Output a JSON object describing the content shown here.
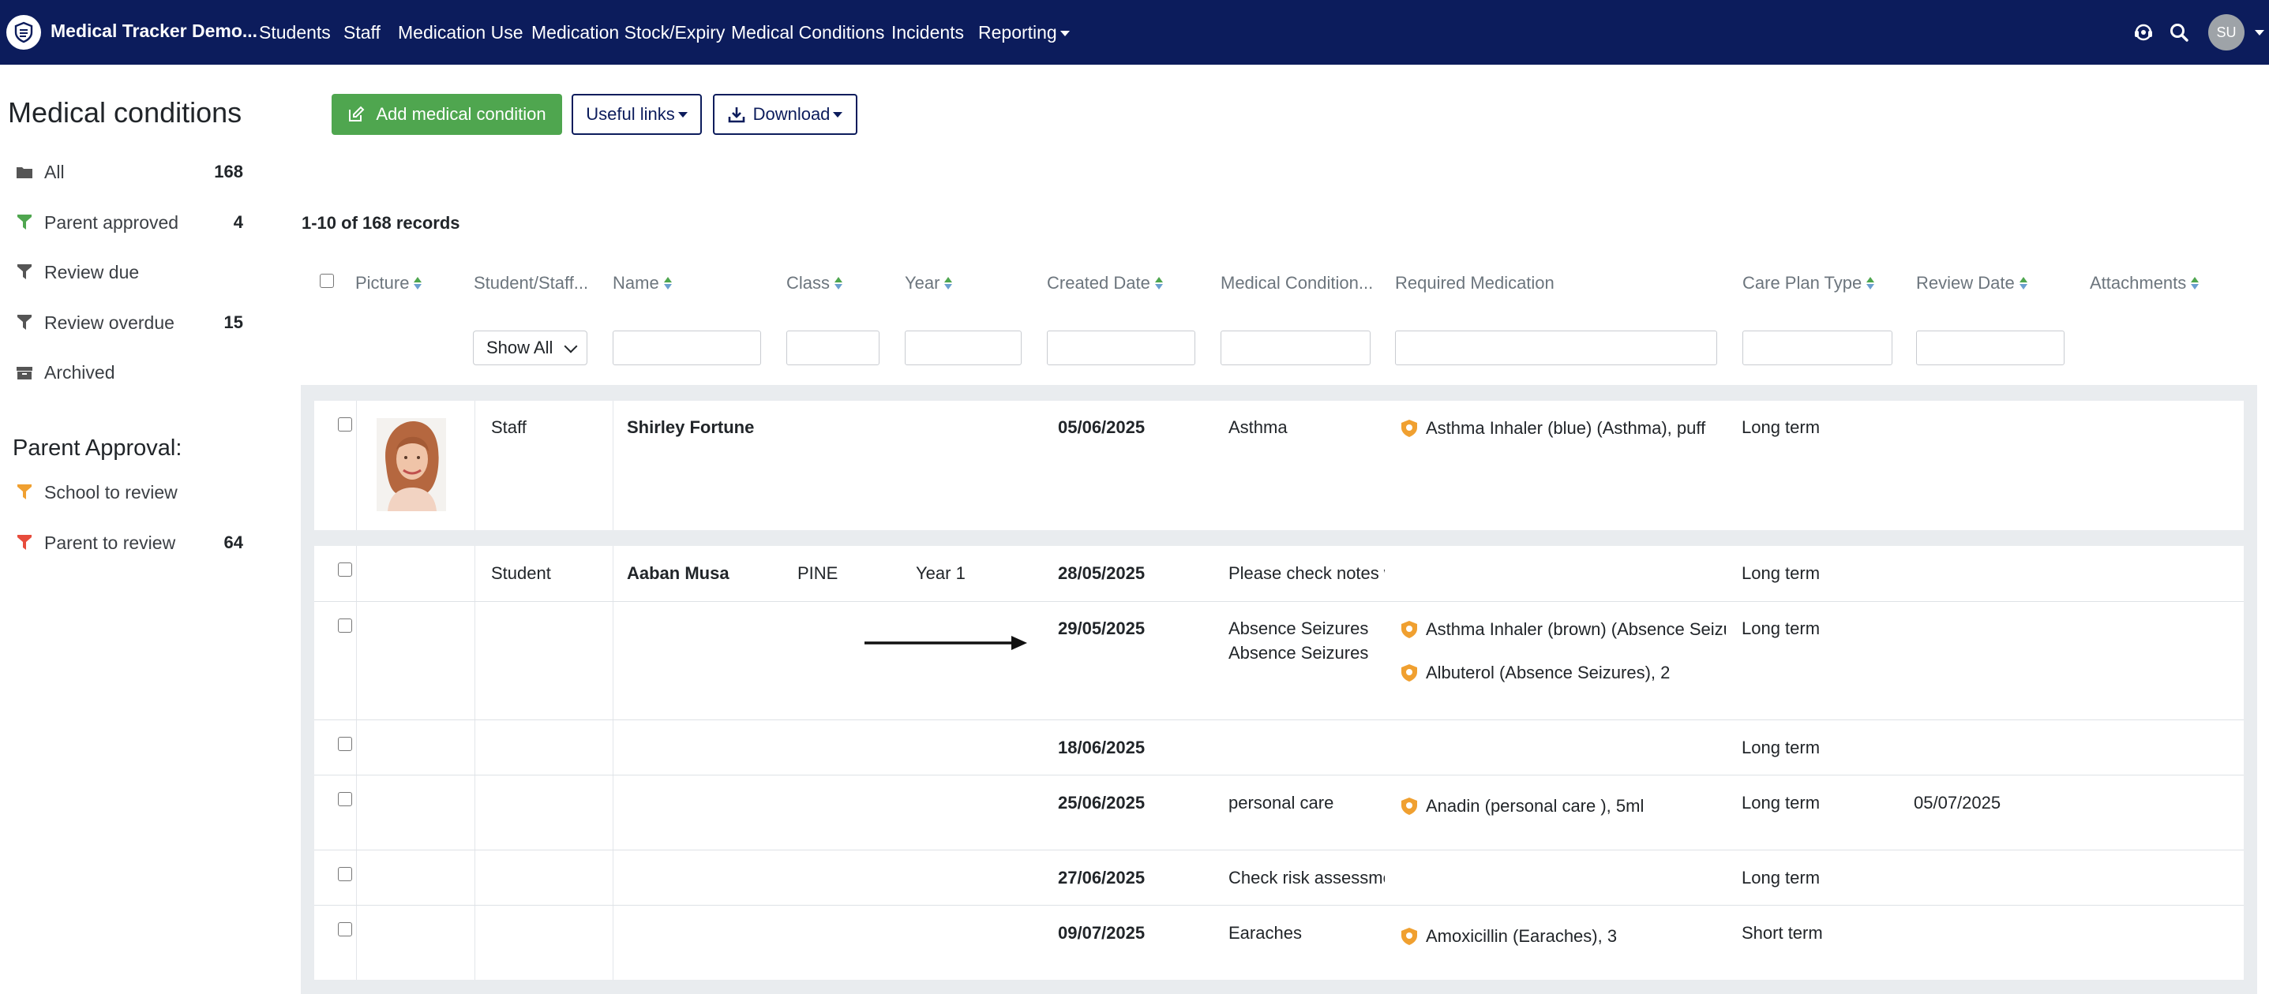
{
  "navbar": {
    "brand": "Medical Tracker Demo...",
    "links": [
      "Students",
      "Staff",
      "Medication Use",
      "Medication Stock/Expiry",
      "Medical Conditions",
      "Incidents",
      "Reporting"
    ],
    "avatar_initials": "SU"
  },
  "sidebar": {
    "title": "Medical conditions",
    "filters": [
      {
        "label": "All",
        "count": "168",
        "icon": "folder-icon",
        "color": "#555555"
      },
      {
        "label": "Parent approved",
        "count": "4",
        "icon": "filter-icon",
        "color": "#4fa64f"
      },
      {
        "label": "Review due",
        "count": "",
        "icon": "filter-icon",
        "color": "#555555"
      },
      {
        "label": "Review overdue",
        "count": "15",
        "icon": "filter-icon",
        "color": "#555555"
      },
      {
        "label": "Archived",
        "count": "",
        "icon": "archive-icon",
        "color": "#555555"
      }
    ],
    "approval_title": "Parent Approval:",
    "approval": [
      {
        "label": "School to review",
        "count": "",
        "color": "#f0a030"
      },
      {
        "label": "Parent to review",
        "count": "64",
        "color": "#e74c3c"
      }
    ]
  },
  "actions": {
    "add": "Add medical condition",
    "links": "Useful links",
    "download": "Download"
  },
  "records": "1-10 of 168 records",
  "table": {
    "headers": [
      "Picture",
      "Student/Staff...",
      "Name",
      "Class",
      "Year",
      "Created Date",
      "Medical Condition...",
      "Required Medication",
      "Care Plan Type",
      "Review Date",
      "Attachments"
    ],
    "filter_select": "Show All",
    "rows": [
      {
        "type": "Staff",
        "name": "Shirley Fortune",
        "class": "",
        "year": "",
        "created": "05/06/2025",
        "condition": [
          "Asthma"
        ],
        "meds": [
          "Asthma Inhaler (blue) (Asthma), puff"
        ],
        "care": "Long term",
        "review": ""
      },
      {
        "type": "Student",
        "name": "Aaban Musa",
        "class": "PINE",
        "year": "Year 1",
        "created": "28/05/2025",
        "condition": [
          "Please check notes w"
        ],
        "meds": [],
        "care": "Long term",
        "review": ""
      },
      {
        "type": "",
        "name": "",
        "class": "",
        "year": "",
        "created": "29/05/2025",
        "condition": [
          "Absence Seizures",
          "Absence Seizures"
        ],
        "meds": [
          "Asthma Inhaler (brown) (Absence Seizure",
          "Albuterol (Absence Seizures), 2"
        ],
        "care": "Long term",
        "review": ""
      },
      {
        "type": "",
        "name": "",
        "class": "",
        "year": "",
        "created": "18/06/2025",
        "condition": [
          ""
        ],
        "meds": [],
        "care": "Long term",
        "review": ""
      },
      {
        "type": "",
        "name": "",
        "class": "",
        "year": "",
        "created": "25/06/2025",
        "condition": [
          "personal care"
        ],
        "meds": [
          "Anadin (personal care ), 5ml"
        ],
        "care": "Long term",
        "review": "05/07/2025"
      },
      {
        "type": "",
        "name": "",
        "class": "",
        "year": "",
        "created": "27/06/2025",
        "condition": [
          "Check risk assessme"
        ],
        "meds": [],
        "care": "Long term",
        "review": ""
      },
      {
        "type": "",
        "name": "",
        "class": "",
        "year": "",
        "created": "09/07/2025",
        "condition": [
          "Earaches"
        ],
        "meds": [
          "Amoxicillin (Earaches), 3"
        ],
        "care": "Short term",
        "review": ""
      }
    ]
  }
}
